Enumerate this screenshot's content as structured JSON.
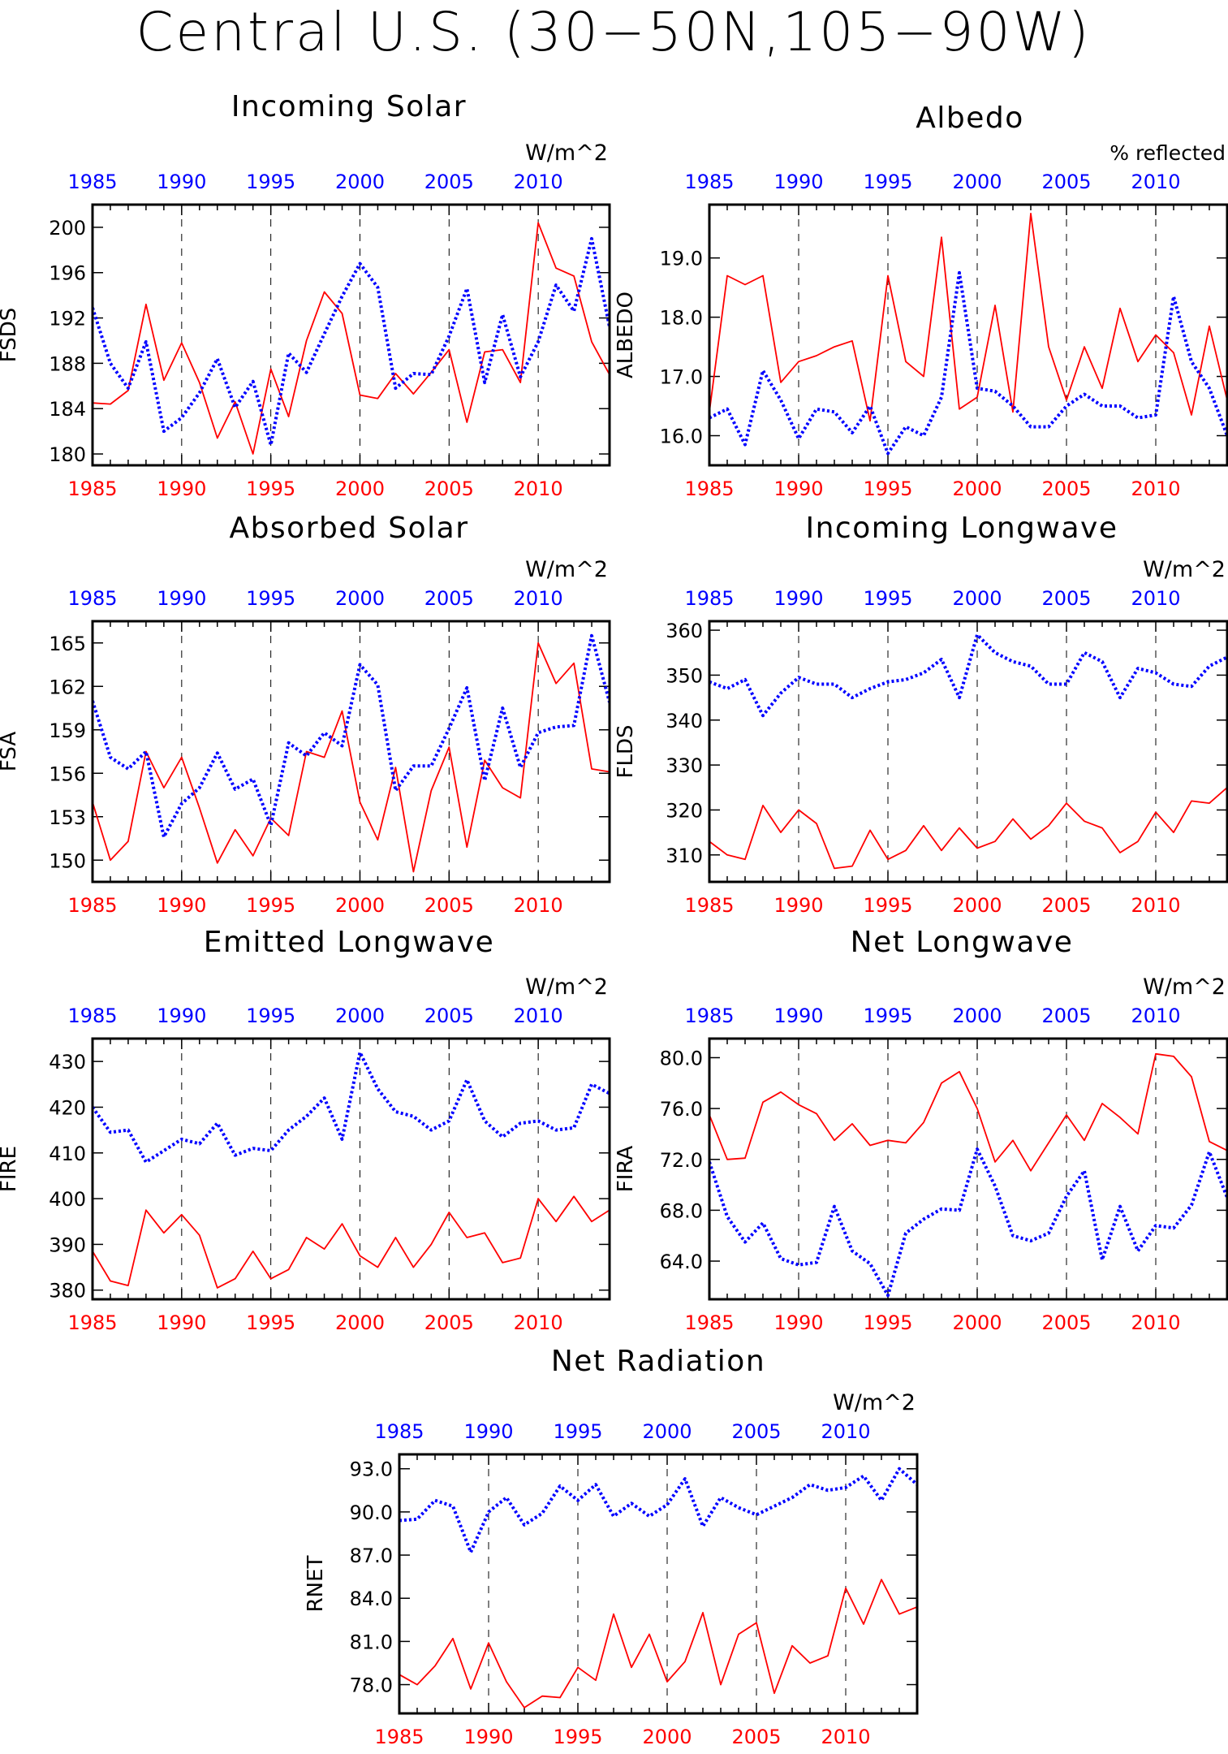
{
  "figure_title": "Central U.S. (30−50N,105−90W)",
  "colors": {
    "red_series": "#ff0000",
    "blue_series": "#0000ff",
    "axis": "#000000"
  },
  "chart_data": [
    {
      "type": "line",
      "title": "Incoming Solar",
      "ylabel": "FSDS",
      "units": "W/m^2",
      "ylim": [
        179,
        202
      ],
      "yticks": [
        180,
        184,
        188,
        192,
        196,
        200
      ],
      "ytick_labels": [
        "180",
        "184",
        "188",
        "192",
        "196",
        "200"
      ],
      "xlim": [
        1985,
        2014
      ],
      "xticks": [
        1985,
        1990,
        1995,
        2000,
        2005,
        2010
      ],
      "grid": "dashed vertical at 1990-2010",
      "series": [
        {
          "color": "red",
          "style": "solid",
          "x_axis": "bottom",
          "values": [
            184.5,
            184.4,
            185.6,
            193.2,
            186.5,
            189.8,
            186.3,
            181.4,
            184.6,
            180.0,
            187.5,
            183.3,
            190.0,
            194.3,
            192.4,
            185.2,
            184.9,
            187.1,
            185.3,
            187.2,
            189.2,
            182.8,
            189.0,
            189.2,
            186.3,
            200.4,
            196.4,
            195.7,
            189.9,
            187.0
          ]
        },
        {
          "color": "blue",
          "style": "dotted",
          "x_axis": "top",
          "values": [
            192.9,
            188.0,
            185.8,
            189.9,
            182.0,
            183.2,
            185.4,
            188.4,
            184.1,
            186.4,
            180.8,
            188.9,
            187.2,
            190.6,
            193.9,
            196.8,
            194.7,
            185.8,
            187.1,
            187.0,
            190.4,
            194.6,
            186.3,
            192.3,
            186.8,
            189.9,
            194.9,
            192.6,
            199.0,
            191.2
          ]
        }
      ]
    },
    {
      "type": "line",
      "title": "Albedo",
      "ylabel": "ALBEDO",
      "units": "% reflected",
      "ylim": [
        15.5,
        19.9
      ],
      "yticks": [
        16.0,
        17.0,
        18.0,
        19.0
      ],
      "ytick_labels": [
        "16.0",
        "17.0",
        "18.0",
        "19.0"
      ],
      "xlim": [
        1985,
        2014
      ],
      "xticks": [
        1985,
        1990,
        1995,
        2000,
        2005,
        2010
      ],
      "grid": "dashed vertical at 1990-2010",
      "series": [
        {
          "color": "red",
          "style": "solid",
          "x_axis": "bottom",
          "values": [
            16.4,
            18.7,
            18.55,
            18.7,
            16.9,
            17.25,
            17.35,
            17.5,
            17.6,
            16.25,
            18.7,
            17.25,
            17.0,
            19.35,
            16.45,
            16.65,
            18.2,
            16.4,
            19.75,
            17.5,
            16.6,
            17.5,
            16.8,
            18.15,
            17.25,
            17.7,
            17.4,
            16.35,
            17.85,
            16.6
          ]
        },
        {
          "color": "blue",
          "style": "dotted",
          "x_axis": "top",
          "values": [
            16.3,
            16.45,
            15.85,
            17.1,
            16.6,
            15.95,
            16.45,
            16.4,
            16.05,
            16.5,
            15.7,
            16.15,
            16.0,
            16.65,
            18.75,
            16.8,
            16.75,
            16.5,
            16.15,
            16.15,
            16.5,
            16.7,
            16.5,
            16.5,
            16.3,
            16.35,
            18.35,
            17.25,
            16.8,
            16.0
          ]
        }
      ]
    },
    {
      "type": "line",
      "title": "Absorbed Solar",
      "ylabel": "FSA",
      "units": "W/m^2",
      "ylim": [
        148.5,
        166.5
      ],
      "yticks": [
        150,
        153,
        156,
        159,
        162,
        165
      ],
      "ytick_labels": [
        "150",
        "153",
        "156",
        "159",
        "162",
        "165"
      ],
      "xlim": [
        1985,
        2014
      ],
      "xticks": [
        1985,
        1990,
        1995,
        2000,
        2005,
        2010
      ],
      "grid": "dashed vertical at 1990-2010",
      "series": [
        {
          "color": "red",
          "style": "solid",
          "x_axis": "bottom",
          "values": [
            154.0,
            150.0,
            151.3,
            157.5,
            155.0,
            157.1,
            153.6,
            149.8,
            152.1,
            150.3,
            152.9,
            151.7,
            157.5,
            157.1,
            160.3,
            154.0,
            151.4,
            156.4,
            149.2,
            154.8,
            157.8,
            150.9,
            156.9,
            155.0,
            154.3,
            165.0,
            162.2,
            163.6,
            156.3,
            156.1
          ]
        },
        {
          "color": "blue",
          "style": "dotted",
          "x_axis": "top",
          "values": [
            161.0,
            157.1,
            156.3,
            157.5,
            151.6,
            153.9,
            155.0,
            157.4,
            154.9,
            155.6,
            152.4,
            158.1,
            157.2,
            158.8,
            157.9,
            163.5,
            162.1,
            154.8,
            156.5,
            156.5,
            159.1,
            161.9,
            155.5,
            160.5,
            156.4,
            158.8,
            159.2,
            159.3,
            165.5,
            160.9
          ]
        }
      ]
    },
    {
      "type": "line",
      "title": "Incoming Longwave",
      "ylabel": "FLDS",
      "units": "W/m^2",
      "ylim": [
        304,
        362
      ],
      "yticks": [
        310,
        320,
        330,
        340,
        350,
        360
      ],
      "ytick_labels": [
        "310",
        "320",
        "330",
        "340",
        "350",
        "360"
      ],
      "xlim": [
        1985,
        2014
      ],
      "xticks": [
        1985,
        1990,
        1995,
        2000,
        2005,
        2010
      ],
      "grid": "dashed vertical at 1990-2010",
      "series": [
        {
          "color": "red",
          "style": "solid",
          "x_axis": "bottom",
          "values": [
            313.0,
            310.0,
            309.0,
            321.0,
            315.0,
            320.0,
            317.0,
            307.0,
            307.5,
            315.5,
            309.0,
            311.0,
            316.5,
            311.0,
            316.0,
            311.5,
            313.0,
            318.0,
            313.5,
            316.5,
            321.5,
            317.5,
            316.0,
            310.5,
            313.0,
            319.5,
            315.0,
            322.0,
            321.5,
            325.0
          ]
        },
        {
          "color": "blue",
          "style": "dotted",
          "x_axis": "top",
          "values": [
            348.5,
            347.0,
            349.0,
            341.0,
            346.0,
            349.5,
            348.0,
            348.0,
            345.0,
            347.0,
            348.5,
            349.0,
            350.5,
            353.5,
            345.0,
            359.0,
            355.0,
            353.0,
            352.0,
            348.0,
            348.0,
            355.0,
            353.0,
            345.0,
            351.5,
            350.5,
            348.0,
            347.5,
            352.0,
            354.0
          ]
        }
      ]
    },
    {
      "type": "line",
      "title": "Emitted Longwave",
      "ylabel": "FIRE",
      "units": "W/m^2",
      "ylim": [
        378,
        435
      ],
      "yticks": [
        380,
        390,
        400,
        410,
        420,
        430
      ],
      "ytick_labels": [
        "380",
        "390",
        "400",
        "410",
        "420",
        "430"
      ],
      "xlim": [
        1985,
        2014
      ],
      "xticks": [
        1985,
        1990,
        1995,
        2000,
        2005,
        2010
      ],
      "grid": "dashed vertical at 1990-2010",
      "series": [
        {
          "color": "red",
          "style": "solid",
          "x_axis": "bottom",
          "values": [
            388.5,
            382.0,
            381.0,
            397.5,
            392.5,
            396.5,
            392.0,
            380.5,
            382.5,
            388.5,
            382.5,
            384.5,
            391.5,
            389.0,
            394.5,
            387.5,
            385.0,
            391.5,
            385.0,
            390.0,
            397.0,
            391.5,
            392.5,
            386.0,
            387.0,
            400.0,
            395.0,
            400.5,
            395.0,
            397.5
          ]
        },
        {
          "color": "blue",
          "style": "dotted",
          "x_axis": "top",
          "values": [
            420.0,
            414.5,
            415.0,
            408.0,
            410.5,
            413.0,
            412.0,
            416.5,
            409.5,
            411.0,
            410.5,
            415.0,
            418.0,
            422.0,
            413.0,
            432.0,
            424.0,
            419.0,
            418.0,
            415.0,
            417.0,
            426.0,
            417.0,
            413.5,
            416.5,
            417.0,
            415.0,
            415.5,
            425.0,
            423.0
          ]
        }
      ]
    },
    {
      "type": "line",
      "title": "Net Longwave",
      "ylabel": "FIRA",
      "units": "W/m^2",
      "ylim": [
        61,
        81.5
      ],
      "yticks": [
        64.0,
        68.0,
        72.0,
        76.0,
        80.0
      ],
      "ytick_labels": [
        "64.0",
        "68.0",
        "72.0",
        "76.0",
        "80.0"
      ],
      "xlim": [
        1985,
        2014
      ],
      "xticks": [
        1985,
        1990,
        1995,
        2000,
        2005,
        2010
      ],
      "grid": "dashed vertical at 1990-2010",
      "series": [
        {
          "color": "red",
          "style": "solid",
          "x_axis": "bottom",
          "values": [
            75.5,
            72.0,
            72.1,
            76.5,
            77.3,
            76.3,
            75.6,
            73.5,
            74.8,
            73.1,
            73.5,
            73.3,
            74.9,
            78.0,
            78.9,
            76.0,
            71.8,
            73.5,
            71.1,
            73.3,
            75.5,
            73.5,
            76.4,
            75.3,
            74.0,
            80.3,
            80.1,
            78.5,
            73.4,
            72.7
          ]
        },
        {
          "color": "blue",
          "style": "dotted",
          "x_axis": "top",
          "values": [
            71.8,
            67.5,
            65.5,
            67.0,
            64.2,
            63.7,
            63.9,
            68.3,
            64.8,
            63.8,
            61.3,
            66.2,
            67.3,
            68.1,
            68.0,
            72.8,
            69.9,
            66.0,
            65.6,
            66.2,
            69.1,
            71.1,
            64.1,
            68.3,
            64.8,
            66.8,
            66.6,
            68.4,
            72.6,
            69.0
          ]
        }
      ]
    },
    {
      "type": "line",
      "title": "Net Radiation",
      "ylabel": "RNET",
      "units": "W/m^2",
      "ylim": [
        76.0,
        94.0
      ],
      "yticks": [
        78.0,
        81.0,
        84.0,
        87.0,
        90.0,
        93.0
      ],
      "ytick_labels": [
        "78.0",
        "81.0",
        "84.0",
        "87.0",
        "90.0",
        "93.0"
      ],
      "xlim": [
        1985,
        2014
      ],
      "xticks": [
        1985,
        1990,
        1995,
        2000,
        2005,
        2010
      ],
      "grid": "dashed vertical at 1990-2010",
      "series": [
        {
          "color": "red",
          "style": "solid",
          "x_axis": "bottom",
          "values": [
            78.7,
            78.0,
            79.3,
            81.2,
            77.7,
            80.9,
            78.2,
            76.4,
            77.2,
            77.1,
            79.2,
            78.3,
            82.9,
            79.2,
            81.5,
            78.2,
            79.6,
            83.0,
            78.0,
            81.5,
            82.3,
            77.4,
            80.7,
            79.5,
            80.0,
            84.7,
            82.2,
            85.3,
            82.9,
            83.4
          ]
        },
        {
          "color": "blue",
          "style": "dotted",
          "x_axis": "top",
          "values": [
            89.4,
            89.5,
            90.8,
            90.4,
            87.2,
            90.0,
            91.0,
            89.1,
            89.9,
            91.8,
            90.8,
            91.9,
            89.7,
            90.6,
            89.7,
            90.5,
            92.3,
            89.0,
            91.0,
            90.3,
            89.8,
            90.4,
            91.0,
            91.9,
            91.5,
            91.7,
            92.5,
            90.8,
            93.0,
            91.9
          ]
        }
      ]
    }
  ]
}
